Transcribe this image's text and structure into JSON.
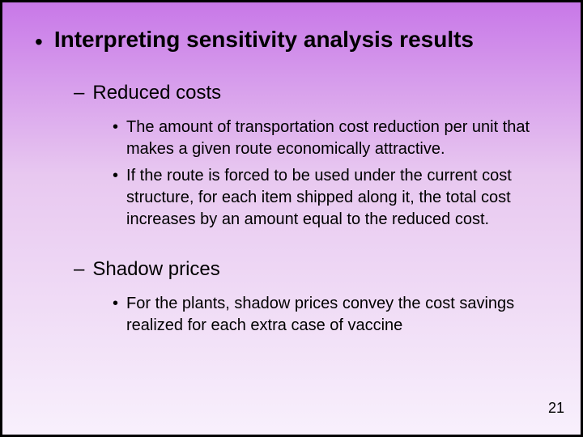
{
  "slide": {
    "background_gradient": [
      "#c878e8",
      "#e8c8f0",
      "#f8f0fc"
    ],
    "border_color": "#000000",
    "text_color": "#000000",
    "font_family": "Arial",
    "main": {
      "bullet_char": "•",
      "text": "Interpreting sensitivity analysis results",
      "fontsize": 28,
      "font_weight": "bold"
    },
    "subs": [
      {
        "dash": "–",
        "text": "Reduced costs",
        "fontsize": 24,
        "items": [
          {
            "bullet": "•",
            "text": "The amount of transportation cost reduction per unit that makes a given route economically attractive.",
            "fontsize": 20
          },
          {
            "bullet": "•",
            "text": "If the route is forced to be used under the current cost structure, for each item shipped along it, the total cost increases by an amount equal to the reduced cost.",
            "fontsize": 20
          }
        ]
      },
      {
        "dash": "–",
        "text": "Shadow prices",
        "fontsize": 24,
        "items": [
          {
            "bullet": "•",
            "text": "For the plants, shadow prices convey the cost savings realized for each extra case of vaccine",
            "fontsize": 20
          }
        ]
      }
    ],
    "page_number": "21"
  }
}
